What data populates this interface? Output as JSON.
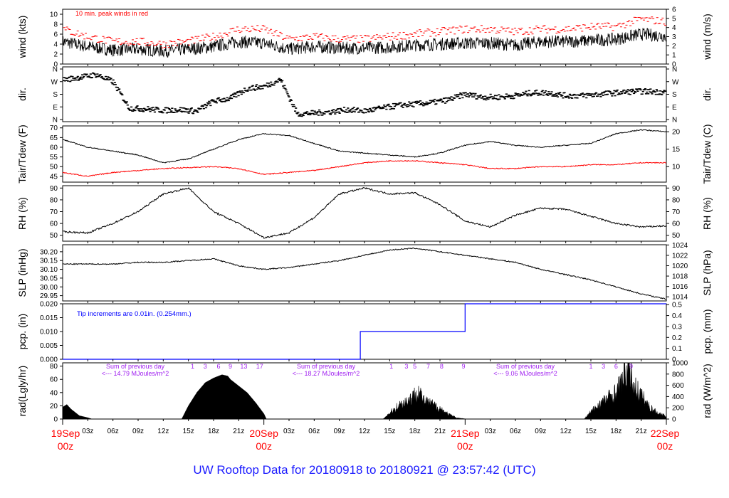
{
  "title": "UW Rooftop Data for 20180918  to  20180921 @ 23:57:42  (UTC)",
  "colors": {
    "title": "#1a1aff",
    "red": "#ff0000",
    "blue": "#0000ff",
    "purple": "#a020f0",
    "black": "#000000"
  },
  "x_axis": {
    "unit": "hours since 19Sep 00z",
    "range": [
      0,
      72
    ],
    "hour_ticks": [
      {
        "h": 3,
        "label": "03z"
      },
      {
        "h": 6,
        "label": "06z"
      },
      {
        "h": 9,
        "label": "09z"
      },
      {
        "h": 12,
        "label": "12z"
      },
      {
        "h": 15,
        "label": "15z"
      },
      {
        "h": 18,
        "label": "18z"
      },
      {
        "h": 21,
        "label": "21z"
      },
      {
        "h": 27,
        "label": "03z"
      },
      {
        "h": 30,
        "label": "06z"
      },
      {
        "h": 33,
        "label": "09z"
      },
      {
        "h": 36,
        "label": "12z"
      },
      {
        "h": 39,
        "label": "15z"
      },
      {
        "h": 42,
        "label": "18z"
      },
      {
        "h": 45,
        "label": "21z"
      },
      {
        "h": 51,
        "label": "03z"
      },
      {
        "h": 54,
        "label": "06z"
      },
      {
        "h": 57,
        "label": "09z"
      },
      {
        "h": 60,
        "label": "12z"
      },
      {
        "h": 63,
        "label": "15z"
      },
      {
        "h": 66,
        "label": "18z"
      },
      {
        "h": 69,
        "label": "21z"
      }
    ],
    "day_ticks": [
      {
        "h": 0,
        "date": "19Sep",
        "time": "00z"
      },
      {
        "h": 24,
        "date": "20Sep",
        "time": "00z"
      },
      {
        "h": 48,
        "date": "21Sep",
        "time": "00z"
      },
      {
        "h": 72,
        "date": "22Sep",
        "time": "00z"
      }
    ]
  },
  "chart_data": [
    {
      "type": "line",
      "id": "wind",
      "ylabel_left": "wind (kts)",
      "ylabel_right": "wind (m/s)",
      "ylim": [
        0,
        11
      ],
      "ticks_left": [
        "0",
        "2",
        "4",
        "6",
        "8",
        "10"
      ],
      "ticks_right": [
        "0",
        "1",
        "2",
        "3",
        "4",
        "5",
        "6"
      ],
      "annotation": "10 min. peak winds in red",
      "series": [
        {
          "x": [
            0,
            3,
            6,
            9,
            12,
            15,
            18,
            21,
            24,
            27,
            30,
            33,
            36,
            39,
            42,
            45,
            48,
            51,
            54,
            57,
            60,
            63,
            66,
            69,
            72
          ],
          "values": [
            4.5,
            3.5,
            2.8,
            3,
            2.6,
            3,
            3.5,
            4.5,
            4.2,
            3,
            3.5,
            3.2,
            3.2,
            3.4,
            3.8,
            4,
            4.2,
            4.2,
            3.8,
            4.5,
            4.5,
            4.7,
            5,
            6,
            5.6
          ]
        },
        {
          "x": [
            0,
            3,
            6,
            9,
            12,
            15,
            18,
            21,
            24,
            27,
            30,
            33,
            36,
            39,
            42,
            45,
            48,
            51,
            54,
            57,
            60,
            63,
            66,
            69,
            72
          ],
          "values": [
            7,
            5.5,
            4.5,
            4.5,
            4,
            4.5,
            5.5,
            7,
            7,
            5,
            5.5,
            5,
            5,
            5.5,
            6,
            6.5,
            7,
            7,
            6.5,
            7,
            7,
            7.5,
            7.5,
            9,
            8.5
          ]
        }
      ]
    },
    {
      "type": "scatter",
      "id": "dir",
      "ylabel_left": "dir.",
      "ylabel_right": "dir.",
      "ticks_left": [
        "N",
        "W",
        "S",
        "E",
        "N"
      ],
      "ticks_right": [
        "N",
        "W",
        "S",
        "E",
        "N"
      ],
      "ylim": [
        0,
        360
      ],
      "series": [
        {
          "x": [
            0,
            2,
            4,
            6,
            8,
            10,
            12,
            14,
            16,
            18,
            20,
            22,
            24,
            26,
            28,
            30,
            32,
            34,
            36,
            38,
            40,
            42,
            44,
            46,
            48,
            50,
            52,
            54,
            56,
            58,
            60,
            62,
            64,
            66,
            68,
            70,
            72
          ],
          "values": [
            282,
            300,
            320,
            270,
            80,
            75,
            65,
            70,
            60,
            130,
            150,
            220,
            235,
            285,
            40,
            45,
            55,
            70,
            60,
            80,
            100,
            110,
            120,
            140,
            180,
            160,
            160,
            170,
            190,
            190,
            170,
            170,
            180,
            190,
            200,
            200,
            195
          ]
        }
      ]
    },
    {
      "type": "line",
      "id": "temp",
      "ylabel_left": "Tair/Tdew (F)",
      "ylabel_right": "Tair/Tdew (C)",
      "ylim": [
        42,
        71
      ],
      "ticks_left": [
        "45",
        "50",
        "55",
        "60",
        "65",
        "70"
      ],
      "ticks_right": [
        "10",
        "15",
        "20"
      ],
      "series": [
        {
          "x": [
            0,
            3,
            6,
            9,
            12,
            15,
            18,
            21,
            24,
            27,
            30,
            33,
            36,
            39,
            42,
            45,
            48,
            51,
            54,
            57,
            60,
            63,
            66,
            69,
            72
          ],
          "values": [
            64,
            60,
            58,
            56,
            52,
            54,
            59,
            64,
            67,
            66,
            62,
            58,
            57,
            56,
            55,
            57,
            61,
            63,
            61,
            60,
            61,
            62,
            67,
            69,
            68
          ]
        },
        {
          "x": [
            0,
            3,
            6,
            9,
            12,
            15,
            18,
            21,
            24,
            27,
            30,
            33,
            36,
            39,
            42,
            45,
            48,
            51,
            54,
            57,
            60,
            63,
            66,
            69,
            72
          ],
          "values": [
            47,
            45,
            47,
            48,
            49,
            49.5,
            50,
            49,
            46,
            47,
            48,
            50,
            52,
            53,
            53,
            52,
            51,
            49,
            49,
            50,
            50,
            51,
            51,
            52,
            52
          ]
        }
      ]
    },
    {
      "type": "line",
      "id": "rh",
      "ylabel_left": "RH (%)",
      "ylabel_right": "RH (%)",
      "ylim": [
        45,
        92
      ],
      "ticks_left": [
        "50",
        "60",
        "70",
        "80",
        "90"
      ],
      "ticks_right": [
        "50",
        "60",
        "70",
        "80",
        "90"
      ],
      "series": [
        {
          "x": [
            0,
            3,
            6,
            9,
            12,
            15,
            18,
            21,
            24,
            27,
            30,
            33,
            36,
            39,
            42,
            45,
            48,
            51,
            54,
            57,
            60,
            63,
            66,
            69,
            72
          ],
          "values": [
            53,
            52,
            60,
            70,
            85,
            90,
            70,
            60,
            48,
            52,
            65,
            85,
            90,
            85,
            86,
            76,
            62,
            57,
            67,
            73,
            72,
            66,
            60,
            57,
            58
          ]
        }
      ]
    },
    {
      "type": "line",
      "id": "slp",
      "ylabel_left": "SLP (inHg)",
      "ylabel_right": "SLP (hPa)",
      "ylim": [
        29.92,
        30.24
      ],
      "ticks_left": [
        "29.95",
        "30.00",
        "30.05",
        "30.10",
        "30.15",
        "30.20"
      ],
      "ticks_right": [
        "1014",
        "1016",
        "1018",
        "1020",
        "1022",
        "1024"
      ],
      "series": [
        {
          "x": [
            0,
            3,
            6,
            9,
            12,
            15,
            18,
            21,
            24,
            27,
            30,
            33,
            36,
            39,
            42,
            45,
            48,
            51,
            54,
            57,
            60,
            63,
            66,
            69,
            72
          ],
          "values": [
            30.13,
            30.13,
            30.13,
            30.14,
            30.14,
            30.15,
            30.16,
            30.12,
            30.1,
            30.11,
            30.13,
            30.15,
            30.18,
            30.21,
            30.22,
            30.2,
            30.18,
            30.16,
            30.14,
            30.1,
            30.07,
            30.04,
            30.0,
            29.96,
            29.93
          ]
        }
      ]
    },
    {
      "type": "line",
      "id": "pcp",
      "ylabel_left": "pcp. (in)",
      "ylabel_right": "pcp. (mm)",
      "ylim": [
        0,
        0.02
      ],
      "ticks_left": [
        "0.000",
        "0.005",
        "0.010",
        "0.015",
        "0.020"
      ],
      "ticks_right": [
        "0",
        "0.1",
        "0.2",
        "0.3",
        "0.4",
        "0.5"
      ],
      "annotation": "Tip increments are 0.01in. (0.254mm.)",
      "series": [
        {
          "x": [
            0,
            35.5,
            35.5,
            48,
            48,
            72
          ],
          "values": [
            0,
            0,
            0.01,
            0.01,
            0.02,
            0.02
          ]
        }
      ]
    },
    {
      "type": "area",
      "id": "rad",
      "ylabel_left": "rad(Lgly/hr)",
      "ylabel_right": "rad (W/m^2)",
      "ylim": [
        0,
        85
      ],
      "ticks_left": [
        "0",
        "20",
        "40",
        "60",
        "80"
      ],
      "ticks_right": [
        "0",
        "200",
        "400",
        "600",
        "800",
        "1000"
      ],
      "series": [
        {
          "x": [
            0,
            0.5,
            1,
            2,
            3,
            3.5,
            14.2,
            15,
            16,
            17,
            18,
            19,
            19.7,
            20,
            21,
            22,
            23,
            24,
            24.3,
            38.2,
            39,
            40,
            41,
            42,
            42.5,
            43,
            44,
            45,
            46,
            47,
            48.2,
            62.2,
            63,
            64,
            65,
            66,
            67,
            67.5,
            68,
            69,
            70,
            71,
            72
          ],
          "values": [
            18,
            22,
            15,
            5,
            2,
            0,
            0,
            20,
            40,
            55,
            62,
            67,
            65,
            60,
            50,
            40,
            25,
            8,
            0,
            0,
            10,
            22,
            30,
            40,
            50,
            30,
            25,
            18,
            8,
            2,
            0,
            0,
            12,
            25,
            35,
            45,
            70,
            90,
            60,
            40,
            20,
            10,
            5
          ]
        }
      ],
      "daily_notes": [
        {
          "line1": "Sum of previous day",
          "line2": "<--- 14.79 MJoules/m^2"
        },
        {
          "line1": "Sum of previous day",
          "line2": "<--- 18.27 MJoules/m^2"
        },
        {
          "line1": "Sum of previous day",
          "line2": "<--- 9.06 MJoules/m^2"
        }
      ],
      "marker_labels": [
        {
          "h": 15.5,
          "t": "1"
        },
        {
          "h": 17,
          "t": "3"
        },
        {
          "h": 18.6,
          "t": "6"
        },
        {
          "h": 20,
          "t": "9"
        },
        {
          "h": 21.6,
          "t": "13"
        },
        {
          "h": 23.5,
          "t": "17"
        },
        {
          "h": 39.2,
          "t": "1"
        },
        {
          "h": 41,
          "t": "3"
        },
        {
          "h": 42,
          "t": "5"
        },
        {
          "h": 43.6,
          "t": "7"
        },
        {
          "h": 45.2,
          "t": "8"
        },
        {
          "h": 47.8,
          "t": "9"
        },
        {
          "h": 63,
          "t": "1"
        },
        {
          "h": 64.5,
          "t": "3"
        },
        {
          "h": 66,
          "t": "6"
        },
        {
          "h": 67.8,
          "t": "9"
        }
      ]
    }
  ]
}
